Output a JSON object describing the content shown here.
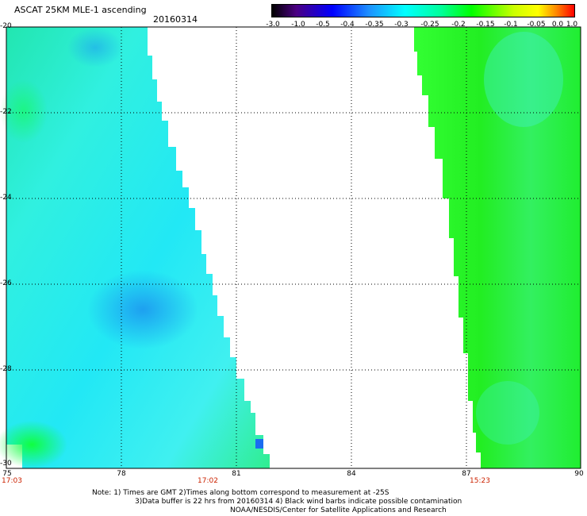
{
  "header": {
    "title": "ASCAT 25KM MLE-1 ascending",
    "date": "20160314"
  },
  "colorbar": {
    "labels": [
      "-3.0",
      "-1.0",
      "-0.5",
      "-0.4",
      "-0.35",
      "-0.3",
      "-0.25",
      "-0.2",
      "-0.15",
      "-0.1",
      "-0.05",
      "0.0",
      "1.0"
    ],
    "colors": [
      "#000000",
      "#4b0082",
      "#0000ff",
      "#1e90ff",
      "#00bfff",
      "#00ffff",
      "#00ff99",
      "#00ff00",
      "#66ff00",
      "#ccff00",
      "#ffff00",
      "#ff8800",
      "#ff0000"
    ]
  },
  "axes": {
    "lat_labels": [
      "-20",
      "-22",
      "-24",
      "-26",
      "-28",
      "-30"
    ],
    "lon_labels": [
      "75",
      "78",
      "81",
      "84",
      "87",
      "90"
    ],
    "time_labels": [
      "17:03",
      "17:02",
      "15:23"
    ]
  },
  "swaths": [
    {
      "name": "west",
      "dominant_value": "-0.3",
      "color": "#33f0f0"
    },
    {
      "name": "east",
      "dominant_value": "-0.2",
      "color": "#22ee22"
    }
  ],
  "notes": [
    "Note: 1) Times are GMT 2)Times along bottom correspond to measurement at -25S",
    "3)Data buffer is 22 hrs from 20160314 4) Black wind barbs indicate possible contamination",
    "NOAA/NESDIS/Center for Satellite Applications and Research"
  ]
}
